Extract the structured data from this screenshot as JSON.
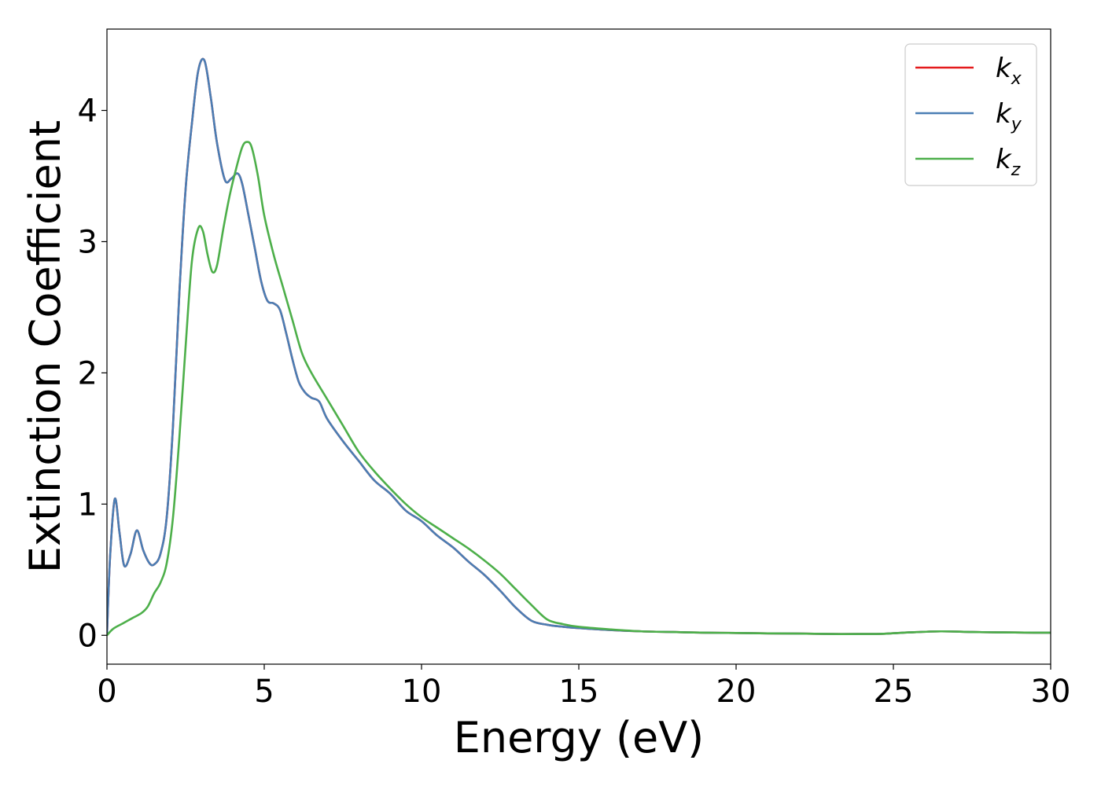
{
  "chart_data": {
    "type": "line",
    "title": "",
    "xlabel": "Energy (eV)",
    "ylabel": "Extinction Coefficient",
    "xlim": [
      0,
      30
    ],
    "ylim": [
      -0.22,
      4.62
    ],
    "xticks": [
      "0",
      "5",
      "10",
      "15",
      "20",
      "25",
      "30"
    ],
    "yticks": [
      "0",
      "1",
      "2",
      "3",
      "4"
    ],
    "grid": false,
    "legend_position": "top-right",
    "series": [
      {
        "name": "k_x",
        "legend_base": "k",
        "legend_sub": "x",
        "color": "#e41a1c",
        "x": [
          0,
          0.1,
          0.25,
          0.4,
          0.55,
          0.75,
          0.95,
          1.15,
          1.35,
          1.5,
          1.7,
          1.9,
          2.1,
          2.3,
          2.5,
          2.7,
          2.9,
          3.1,
          3.3,
          3.5,
          3.75,
          3.95,
          4.15,
          4.3,
          4.5,
          4.7,
          4.9,
          5.1,
          5.3,
          5.5,
          5.7,
          5.9,
          6.1,
          6.3,
          6.5,
          6.75,
          7.0,
          7.5,
          8.0,
          8.5,
          9.0,
          9.5,
          10.0,
          10.5,
          11.0,
          11.5,
          12.0,
          12.5,
          13.0,
          13.5,
          14.0,
          14.5,
          15.0,
          16.0,
          17.0,
          18.0,
          19.0,
          20.0,
          21.0,
          22.0,
          23.0,
          24.0,
          24.7,
          25.5,
          26.5,
          27.5,
          28.5,
          29.5,
          30
        ],
        "values": [
          0.0,
          0.6,
          1.04,
          0.78,
          0.53,
          0.62,
          0.8,
          0.65,
          0.55,
          0.54,
          0.62,
          0.9,
          1.6,
          2.6,
          3.4,
          3.9,
          4.3,
          4.38,
          4.1,
          3.75,
          3.47,
          3.48,
          3.52,
          3.44,
          3.2,
          2.95,
          2.7,
          2.55,
          2.53,
          2.48,
          2.3,
          2.1,
          1.93,
          1.85,
          1.81,
          1.78,
          1.65,
          1.48,
          1.33,
          1.18,
          1.08,
          0.95,
          0.87,
          0.76,
          0.67,
          0.56,
          0.46,
          0.34,
          0.21,
          0.11,
          0.08,
          0.065,
          0.055,
          0.04,
          0.03,
          0.025,
          0.02,
          0.018,
          0.015,
          0.013,
          0.01,
          0.01,
          0.012,
          0.022,
          0.03,
          0.025,
          0.022,
          0.02,
          0.02
        ]
      },
      {
        "name": "k_y",
        "legend_base": "k",
        "legend_sub": "y",
        "color": "#4a7eb4",
        "x": [
          0,
          0.1,
          0.25,
          0.4,
          0.55,
          0.75,
          0.95,
          1.15,
          1.35,
          1.5,
          1.7,
          1.9,
          2.1,
          2.3,
          2.5,
          2.7,
          2.9,
          3.1,
          3.3,
          3.5,
          3.75,
          3.95,
          4.15,
          4.3,
          4.5,
          4.7,
          4.9,
          5.1,
          5.3,
          5.5,
          5.7,
          5.9,
          6.1,
          6.3,
          6.5,
          6.75,
          7.0,
          7.5,
          8.0,
          8.5,
          9.0,
          9.5,
          10.0,
          10.5,
          11.0,
          11.5,
          12.0,
          12.5,
          13.0,
          13.5,
          14.0,
          14.5,
          15.0,
          16.0,
          17.0,
          18.0,
          19.0,
          20.0,
          21.0,
          22.0,
          23.0,
          24.0,
          24.7,
          25.5,
          26.5,
          27.5,
          28.5,
          29.5,
          30
        ],
        "values": [
          0.0,
          0.6,
          1.04,
          0.78,
          0.53,
          0.62,
          0.8,
          0.65,
          0.55,
          0.54,
          0.62,
          0.9,
          1.6,
          2.6,
          3.4,
          3.9,
          4.3,
          4.38,
          4.1,
          3.75,
          3.47,
          3.48,
          3.52,
          3.44,
          3.2,
          2.95,
          2.7,
          2.55,
          2.53,
          2.48,
          2.3,
          2.1,
          1.93,
          1.85,
          1.81,
          1.78,
          1.65,
          1.48,
          1.33,
          1.18,
          1.08,
          0.95,
          0.87,
          0.76,
          0.67,
          0.56,
          0.46,
          0.34,
          0.21,
          0.11,
          0.08,
          0.065,
          0.055,
          0.04,
          0.03,
          0.025,
          0.02,
          0.018,
          0.015,
          0.013,
          0.01,
          0.01,
          0.012,
          0.022,
          0.03,
          0.025,
          0.022,
          0.02,
          0.02
        ]
      },
      {
        "name": "k_z",
        "legend_base": "k",
        "legend_sub": "z",
        "color": "#4daf4a",
        "x": [
          0,
          0.2,
          0.5,
          0.8,
          1.1,
          1.3,
          1.5,
          1.7,
          1.9,
          2.1,
          2.3,
          2.5,
          2.7,
          2.9,
          3.05,
          3.2,
          3.35,
          3.5,
          3.7,
          3.9,
          4.1,
          4.3,
          4.45,
          4.6,
          4.8,
          5.0,
          5.3,
          5.6,
          5.9,
          6.2,
          6.5,
          7.0,
          7.5,
          8.0,
          8.5,
          9.0,
          9.5,
          10.0,
          10.5,
          11.0,
          11.5,
          12.0,
          12.5,
          13.0,
          13.5,
          14.0,
          14.5,
          15.0,
          16.0,
          17.0,
          18.0,
          19.0,
          20.0,
          21.0,
          22.0,
          23.0,
          24.0,
          24.7,
          25.5,
          26.5,
          27.5,
          28.5,
          29.5,
          30
        ],
        "values": [
          0.0,
          0.05,
          0.09,
          0.13,
          0.17,
          0.22,
          0.32,
          0.4,
          0.55,
          0.9,
          1.5,
          2.2,
          2.85,
          3.1,
          3.08,
          2.9,
          2.77,
          2.82,
          3.1,
          3.35,
          3.55,
          3.72,
          3.76,
          3.72,
          3.5,
          3.2,
          2.9,
          2.65,
          2.4,
          2.15,
          2.0,
          1.8,
          1.6,
          1.4,
          1.25,
          1.12,
          1.0,
          0.9,
          0.82,
          0.74,
          0.66,
          0.57,
          0.47,
          0.35,
          0.23,
          0.12,
          0.085,
          0.065,
          0.045,
          0.03,
          0.025,
          0.02,
          0.018,
          0.015,
          0.013,
          0.01,
          0.01,
          0.012,
          0.022,
          0.03,
          0.025,
          0.022,
          0.02,
          0.02
        ]
      }
    ]
  }
}
